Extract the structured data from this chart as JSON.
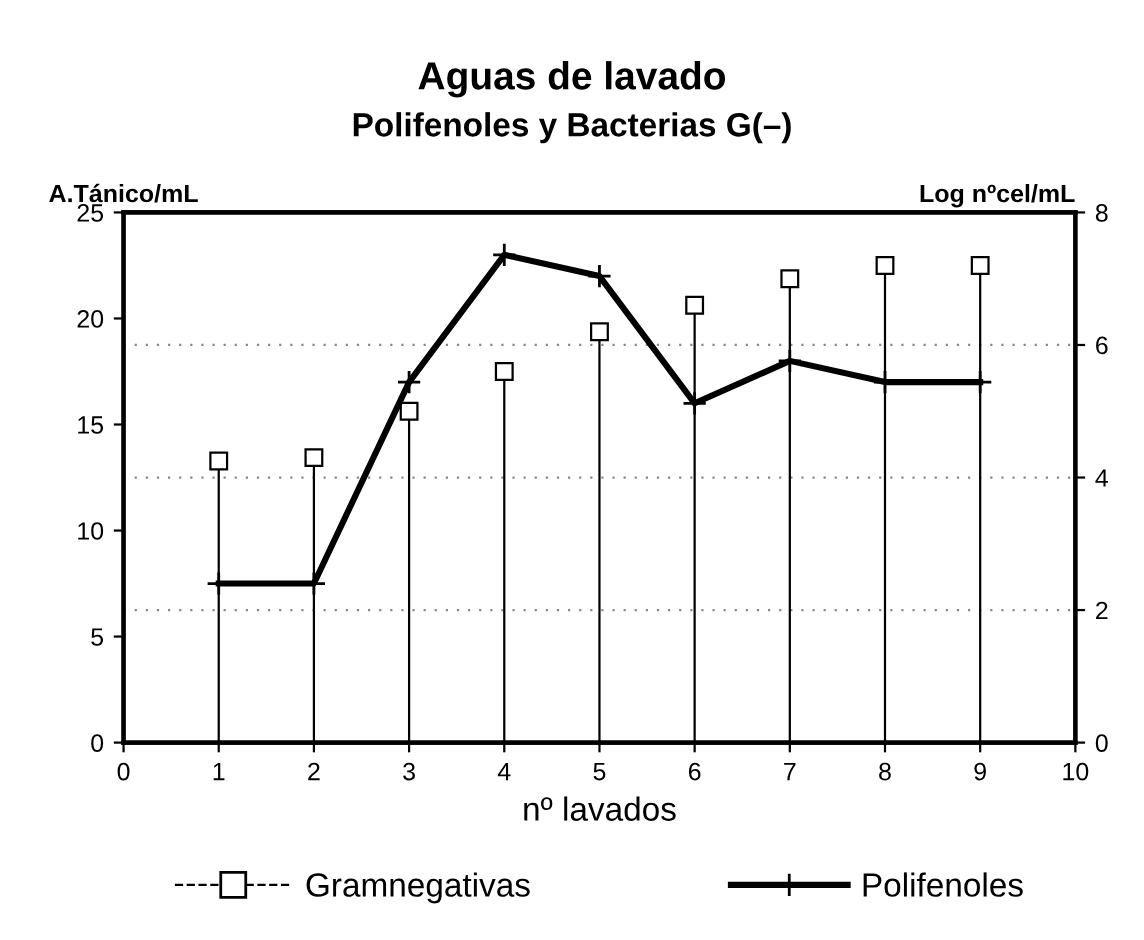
{
  "chart_data": {
    "type": "line",
    "title": "Aguas de lavado",
    "subtitle": "Polifenoles y Bacterias G(–)",
    "xlabel": "nº lavados",
    "ylabel": "A.Tánico/mL",
    "y2label": "Log nºcel/mL",
    "x": [
      1,
      2,
      3,
      4,
      5,
      6,
      7,
      8,
      9
    ],
    "series": [
      {
        "name": "Gramnegativas",
        "type": "lollipop",
        "axis": "y2",
        "color": "#000000",
        "marker": "square",
        "values": [
          4.25,
          4.3,
          5.0,
          5.6,
          6.2,
          6.6,
          7.0,
          7.2,
          7.2
        ]
      },
      {
        "name": "Polifenoles",
        "type": "line",
        "color": "#000000",
        "marker": "cross",
        "line_style": "solid",
        "values": [
          7.5,
          7.5,
          17,
          23,
          22,
          16,
          18,
          17,
          17
        ]
      }
    ],
    "xlim": [
      0,
      10
    ],
    "xticks": [
      0,
      1,
      2,
      3,
      4,
      5,
      6,
      7,
      8,
      9,
      10
    ],
    "ylim": [
      0,
      25
    ],
    "yticks": [
      0,
      5,
      10,
      15,
      20,
      25
    ],
    "y2lim": [
      0,
      8
    ],
    "y2ticks": [
      0,
      2,
      4,
      6,
      8
    ],
    "grid": "y2",
    "legend": "bottom"
  }
}
